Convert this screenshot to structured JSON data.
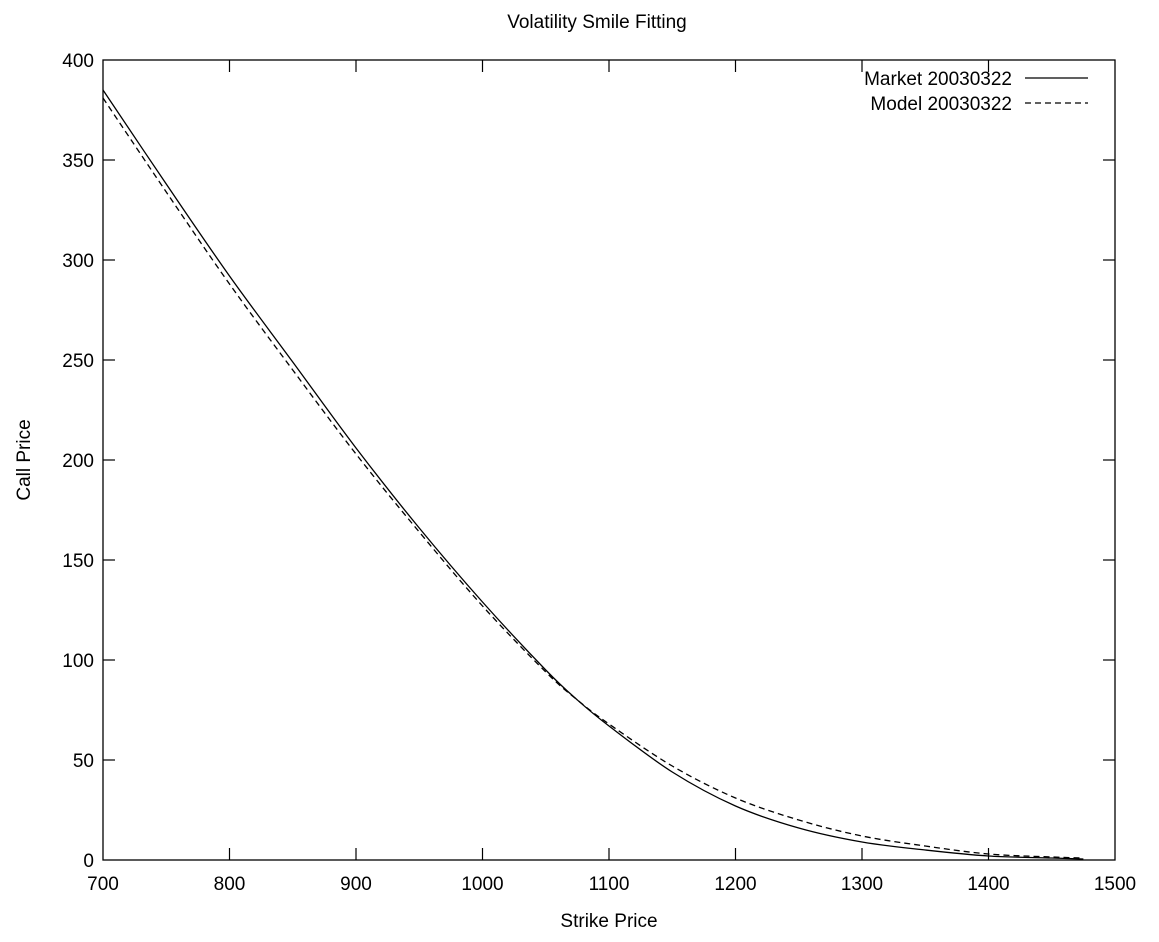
{
  "chart_data": {
    "type": "line",
    "title": "Volatility Smile Fitting",
    "xlabel": "Strike Price",
    "ylabel": "Call Price",
    "xlim": [
      700,
      1500
    ],
    "ylim": [
      0,
      400
    ],
    "xticks": [
      "700",
      "800",
      "900",
      "1000",
      "1100",
      "1200",
      "1300",
      "1400",
      "1500"
    ],
    "yticks": [
      "0",
      "50",
      "100",
      "150",
      "200",
      "250",
      "300",
      "350",
      "400"
    ],
    "grid": false,
    "legend_position": "top-right",
    "series": [
      {
        "name": "Market 20030322",
        "style": "solid",
        "color": "#000000",
        "x": [
          700,
          750,
          800,
          850,
          900,
          950,
          1000,
          1050,
          1075,
          1100,
          1150,
          1200,
          1250,
          1300,
          1350,
          1400,
          1450,
          1475
        ],
        "y": [
          385,
          338,
          292,
          249,
          206,
          166,
          129,
          95,
          80,
          67,
          44,
          27,
          16,
          9,
          5,
          2,
          1,
          0.5
        ]
      },
      {
        "name": "Model 20030322",
        "style": "dashed",
        "color": "#000000",
        "x": [
          700,
          750,
          800,
          850,
          900,
          950,
          1000,
          1050,
          1075,
          1100,
          1150,
          1200,
          1250,
          1300,
          1350,
          1400,
          1450,
          1475
        ],
        "y": [
          381,
          334,
          288,
          245,
          203,
          164,
          127,
          94,
          80,
          68,
          47,
          31,
          20,
          12,
          7,
          3,
          1.5,
          1
        ]
      }
    ]
  }
}
